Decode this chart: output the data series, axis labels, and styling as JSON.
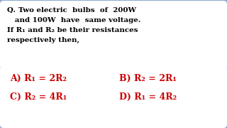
{
  "bg_color": "#8fa8c8",
  "question_box_color": "#ffffff",
  "answer_box_color": "#ffffff",
  "question_text_color": "#000000",
  "answer_text_color": "#cc0000",
  "question_lines": [
    "Q. Two electric  bulbs  of  200W",
    "   and 100W  have  same voltage.",
    "If R₁ and R₂ be their resistances",
    "respectively then,"
  ],
  "options_left": [
    "A) R₁ = 2R₂",
    "C) R₂ = 4R₁"
  ],
  "options_right": [
    "B) R₂ = 2R₁",
    "D) R₁ = 4R₂"
  ]
}
